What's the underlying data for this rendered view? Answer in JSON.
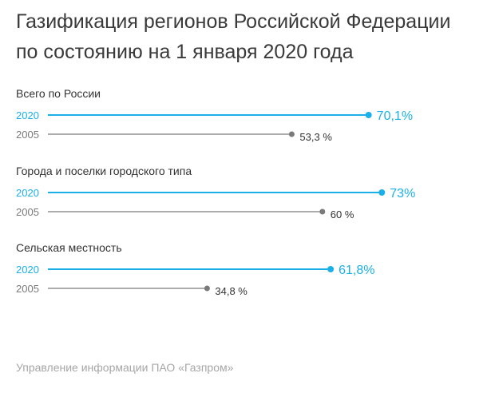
{
  "page": {
    "title_line1": "Газификация регионов Российской Федерации",
    "title_line2": "по состоянию на 1 января 2020 года",
    "footer": "Управление информации ПАО «Газпром»"
  },
  "colors": {
    "series_2020": "#1bb1e8",
    "series_2005": "#7a7a7a",
    "text": "#333333"
  },
  "chart_data": {
    "type": "bar",
    "groups": [
      "Всего по России",
      "Города и поселки городского типа",
      "Сельская местность"
    ],
    "series": [
      {
        "name": "2020",
        "values": [
          70.1,
          73,
          61.8
        ],
        "labels": [
          "70,1%",
          "73%",
          "61,8%"
        ],
        "color": "#1bb1e8"
      },
      {
        "name": "2005",
        "values": [
          53.3,
          60,
          34.8
        ],
        "labels": [
          "53,3 %",
          "60 %",
          "34,8 %"
        ],
        "color": "#7a7a7a"
      }
    ],
    "xlim": [
      0,
      100
    ]
  }
}
